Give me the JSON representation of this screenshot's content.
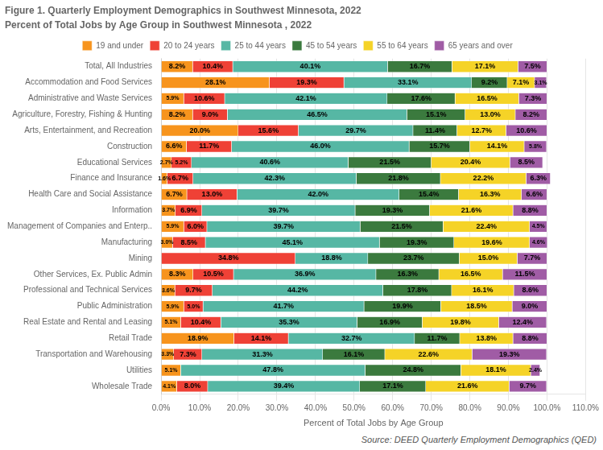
{
  "chart_data": {
    "type": "bar",
    "orientation": "horizontal",
    "stacked": true,
    "data_labels": true,
    "grid": true,
    "legend": "top",
    "title": "Figure 1. Quarterly Employment Demographics in Southwest Minnesota, 2022",
    "subtitle": "Percent of Total Jobs by Age Group in Southwest Minnesota , 2022",
    "xlabel": "Percent of Total Jobs by Age Group",
    "annotations": [
      "Source: DEED Quarterly Employment Demographics (QED)"
    ],
    "categories": [
      "Total, All Industries",
      "Accommodation and Food Services",
      "Administrative and Waste Services",
      "Agriculture, Forestry, Fishing & Hunting",
      "Arts, Entertainment, and Recreation",
      "Construction",
      "Educational Services",
      "Finance and Insurance",
      "Health Care and Social Assistance",
      "Information",
      "Management of Companies and Enterp..",
      "Manufacturing",
      "Mining",
      "Other Services, Ex. Public Admin",
      "Professional and Technical Services",
      "Public Administration",
      "Real Estate and Rental and Leasing",
      "Retail Trade",
      "Transportation and Warehousing",
      "Utilities",
      "Wholesale Trade"
    ],
    "xlim": [
      0,
      110
    ],
    "xticks": [
      {
        "value": 0,
        "label": "0.0%"
      },
      {
        "value": 10,
        "label": "10.0%"
      },
      {
        "value": 20,
        "label": "20.0%"
      },
      {
        "value": 30,
        "label": "30.0%"
      },
      {
        "value": 40,
        "label": "40.0%"
      },
      {
        "value": 50,
        "label": "50.0%"
      },
      {
        "value": 60,
        "label": "60.0%"
      },
      {
        "value": 70,
        "label": "70.0%"
      },
      {
        "value": 80,
        "label": "80.0%"
      },
      {
        "value": 90,
        "label": "90.0%"
      },
      {
        "value": 100,
        "label": "100.0%"
      },
      {
        "value": 110,
        "label": "110.0%"
      }
    ],
    "series": [
      {
        "name": "19 and under",
        "color": "#F7941D",
        "values": [
          8.2,
          28.1,
          5.9,
          8.2,
          20.0,
          6.6,
          2.7,
          1.6,
          6.7,
          3.7,
          5.9,
          3.0,
          0.0,
          8.3,
          3.6,
          5.9,
          5.1,
          18.9,
          3.3,
          5.1,
          4.1
        ],
        "value_labels": [
          "8.2%",
          "28.1%",
          "5.9%",
          "8.2%",
          "20.0%",
          "6.6%",
          "2.7%",
          "1.6%",
          "6.7%",
          "3.7%",
          "5.9%",
          "3.0%",
          null,
          "8.3%",
          "3.6%",
          "5.9%",
          "5.1%",
          "18.9%",
          "3.3%",
          "5.1%",
          "4.1%"
        ]
      },
      {
        "name": "20 to 24 years",
        "color": "#EF4136",
        "values": [
          10.4,
          19.3,
          10.6,
          9.0,
          15.6,
          11.7,
          5.2,
          6.7,
          13.0,
          6.9,
          6.0,
          8.5,
          34.8,
          10.5,
          9.7,
          5.0,
          10.4,
          14.1,
          7.3,
          0.0,
          8.0
        ],
        "value_labels": [
          "10.4%",
          "19.3%",
          "10.6%",
          "9.0%",
          "15.6%",
          "11.7%",
          "5.2%",
          "6.7%",
          "13.0%",
          "6.9%",
          "6.0%",
          "8.5%",
          "34.8%",
          "10.5%",
          "9.7%",
          "5.0%",
          "10.4%",
          "14.1%",
          "7.3%",
          null,
          "8.0%"
        ]
      },
      {
        "name": "25 to 44 years",
        "color": "#56B7A4",
        "values": [
          40.1,
          33.1,
          42.1,
          46.5,
          29.7,
          46.0,
          40.6,
          42.3,
          42.0,
          39.7,
          39.7,
          45.1,
          18.8,
          36.9,
          44.2,
          41.7,
          35.3,
          32.7,
          31.3,
          47.8,
          39.4
        ],
        "value_labels": [
          "40.1%",
          "33.1%",
          "42.1%",
          "46.5%",
          "29.7%",
          "46.0%",
          "40.6%",
          "42.3%",
          "42.0%",
          "39.7%",
          "39.7%",
          "45.1%",
          "18.8%",
          "36.9%",
          "44.2%",
          "41.7%",
          "35.3%",
          "32.7%",
          "31.3%",
          "47.8%",
          "39.4%"
        ]
      },
      {
        "name": "45 to 54 years",
        "color": "#3B7A3E",
        "values": [
          16.7,
          9.2,
          17.6,
          15.1,
          11.4,
          15.7,
          21.5,
          21.8,
          15.4,
          19.3,
          21.5,
          19.3,
          23.7,
          16.3,
          17.8,
          19.9,
          16.9,
          11.7,
          16.1,
          24.8,
          17.1
        ],
        "value_labels": [
          "16.7%",
          "9.2%",
          "17.6%",
          "15.1%",
          "11.4%",
          "15.7%",
          "21.5%",
          "21.8%",
          "15.4%",
          "19.3%",
          "21.5%",
          "19.3%",
          "23.7%",
          "16.3%",
          "17.8%",
          "19.9%",
          "16.9%",
          "11.7%",
          "16.1%",
          "24.8%",
          "17.1%"
        ]
      },
      {
        "name": "55 to 64 years",
        "color": "#F5D327",
        "values": [
          17.1,
          7.1,
          16.5,
          13.0,
          12.7,
          14.1,
          20.4,
          22.2,
          16.3,
          21.6,
          22.4,
          19.6,
          15.0,
          16.5,
          16.1,
          18.5,
          19.8,
          13.8,
          22.6,
          18.1,
          21.6
        ],
        "value_labels": [
          "17.1%",
          "7.1%",
          "16.5%",
          "13.0%",
          "12.7%",
          "14.1%",
          "20.4%",
          "22.2%",
          "16.3%",
          "21.6%",
          "22.4%",
          "19.6%",
          "15.0%",
          "16.5%",
          "16.1%",
          "18.5%",
          "19.8%",
          "13.8%",
          "22.6%",
          "18.1%",
          "21.6%"
        ]
      },
      {
        "name": "65 years and over",
        "color": "#A05CA5",
        "values": [
          7.5,
          3.1,
          7.3,
          8.2,
          10.6,
          5.8,
          8.5,
          6.3,
          6.6,
          8.8,
          4.5,
          4.6,
          7.7,
          11.5,
          8.6,
          9.0,
          12.4,
          8.8,
          19.3,
          2.4,
          9.7
        ],
        "value_labels": [
          "7.5%",
          "3.1%",
          "7.3%",
          "8.2%",
          "10.6%",
          "5.8%",
          "8.5%",
          "6.3%",
          "6.6%",
          "8.8%",
          "4.5%",
          "4.6%",
          "7.7%",
          "11.5%",
          "8.6%",
          "9.0%",
          "12.4%",
          "8.8%",
          "19.3%",
          "2.4%",
          "9.7%"
        ]
      }
    ]
  }
}
